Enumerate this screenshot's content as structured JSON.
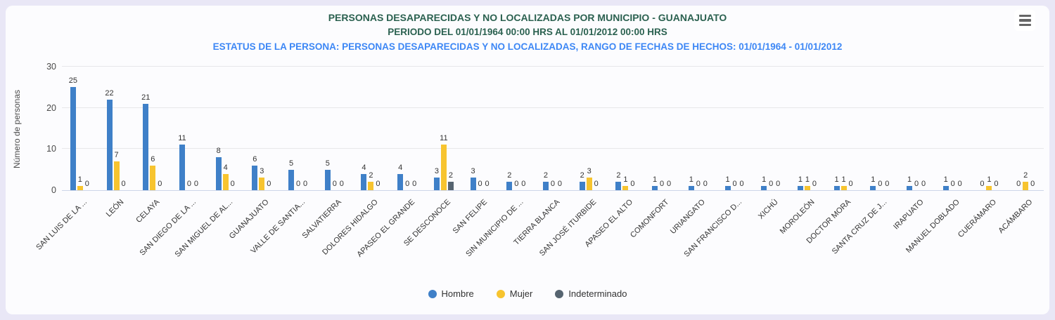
{
  "chart": {
    "title": "PERSONAS DESAPARECIDAS Y NO LOCALIZADAS POR MUNICIPIO - GUANAJUATO",
    "subtitle_period": "PERIODO DEL 01/01/1964 00:00 HRS AL 01/01/2012 00:00 HRS",
    "subtitle_status": "ESTATUS DE LA PERSONA: PERSONAS DESAPARECIDAS Y NO LOCALIZADAS, RANGO DE FECHAS DE HECHOS: 01/01/1964 - 01/01/2012",
    "ylabel": "Número de personas"
  },
  "colors": {
    "page_background": "#e9e7f6",
    "card_background": "#fcfcfe",
    "title_green": "#2b6150",
    "subtitle_blue": "#3d87f5",
    "hombre_blue": "#3f80c8",
    "mujer_yellow": "#f7c42f",
    "indeterminado_gray": "#566470"
  },
  "chart_data": {
    "type": "bar",
    "title": "PERSONAS DESAPARECIDAS Y NO LOCALIZADAS POR MUNICIPIO - GUANAJUATO",
    "subtitle": "PERIODO DEL 01/01/1964 00:00 HRS AL 01/01/2012 00:00 HRS",
    "xlabel": "",
    "ylabel": "Número de personas",
    "ylim": [
      0,
      30
    ],
    "yticks": [
      0,
      10,
      20,
      30
    ],
    "grid": true,
    "legend_position": "bottom",
    "categories": [
      "SAN LUIS DE LA ...",
      "LEÓN",
      "CELAYA",
      "SAN DIEGO DE LA ...",
      "SAN MIGUEL DE AL...",
      "GUANAJUATO",
      "VALLE DE SANTIA...",
      "SALVATIERRA",
      "DOLORES HIDALGO",
      "APASEO EL GRANDE",
      "SE DESCONOCE",
      "SAN FELIPE",
      "SIN MUNICIPIO DE ...",
      "TIERRA BLANCA",
      "SAN JOSÉ ITURBIDE",
      "APASEO EL ALTO",
      "COMONFORT",
      "URIANGATO",
      "SAN FRANCISCO D...",
      "XICHÚ",
      "MOROLEÓN",
      "DOCTOR MORA",
      "SANTA CRUZ DE J...",
      "IRAPUATO",
      "MANUEL DOBLADO",
      "CUERÁMARO",
      "ACÁMBARO"
    ],
    "series": [
      {
        "name": "Hombre",
        "color": "#3f80c8",
        "values": [
          25,
          22,
          21,
          11,
          8,
          6,
          5,
          5,
          4,
          4,
          3,
          3,
          2,
          2,
          2,
          2,
          1,
          1,
          1,
          1,
          1,
          1,
          1,
          1,
          1,
          0,
          0
        ]
      },
      {
        "name": "Mujer",
        "color": "#f7c42f",
        "values": [
          1,
          7,
          6,
          0,
          4,
          3,
          0,
          0,
          2,
          0,
          11,
          0,
          0,
          0,
          3,
          1,
          0,
          0,
          0,
          0,
          1,
          1,
          0,
          0,
          0,
          1,
          2
        ]
      },
      {
        "name": "Indeterminado",
        "color": "#566470",
        "values": [
          0,
          0,
          0,
          0,
          0,
          0,
          0,
          0,
          0,
          0,
          2,
          0,
          0,
          0,
          0,
          0,
          0,
          0,
          0,
          0,
          0,
          0,
          0,
          0,
          0,
          0,
          0
        ]
      }
    ]
  }
}
